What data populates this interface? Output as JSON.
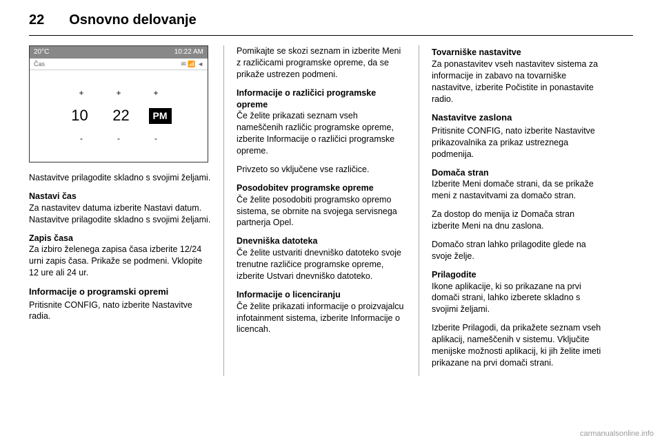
{
  "header": {
    "page": "22",
    "chapter": "Osnovno delovanje"
  },
  "screenshot": {
    "temp": "20°C",
    "time_small": "10:22 AM",
    "sub_left": "Čas",
    "sub_right": "✉ 📶 ◄",
    "plus": "+",
    "minus": "-",
    "hour": "10",
    "minute": "22",
    "pm": "PM"
  },
  "col1": {
    "p1": "Nastavitve prilagodite skladno s svojimi željami.",
    "h_nastavi": "Nastavi čas",
    "p2": "Za nastavitev datuma izberite Nastavi datum. Nastavitve prilagodite skladno s svojimi željami.",
    "h_zapis": "Zapis časa",
    "p3": "Za izbiro želenega zapisa časa izberite 12/24 urni zapis časa. Prikaže se podmeni. Vklopite 12 ure ali 24 ur.",
    "h_info": "Informacije o programski opremi",
    "p4": "Pritisnite CONFIG, nato izberite Nastavitve radia."
  },
  "col2": {
    "p1": "Pomikajte se skozi seznam in izberite Meni z različicami programske opreme, da se prikaže ustrezen podmeni.",
    "h_inf": "Informacije o različici programske opreme",
    "p2": "Če želite prikazati seznam vseh nameščenih različic programske opreme, izberite Informacije o različici programske opreme.",
    "p3": "Privzeto so vključene vse različice.",
    "h_pos": "Posodobitev programske opreme",
    "p4": "Če želite posodobiti programsko opremo sistema, se obrnite na svojega servisnega partnerja Opel.",
    "h_dnev": "Dnevniška datoteka",
    "p5": "Če želite ustvariti dnevniško datoteko svoje trenutne različice programske opreme, izberite Ustvari dnevniško datoteko.",
    "h_lic": "Informacije o licenciranju",
    "p6": "Če želite prikazati informacije o proizvajalcu infotainment sistema, izberite Informacije o licencah."
  },
  "col3": {
    "h_tov": "Tovarniške nastavitve",
    "p1": "Za ponastavitev vseh nastavitev sistema za informacije in zabavo na tovarniške nastavitve, izberite Počistite in ponastavite radio.",
    "h_nz": "Nastavitve zaslona",
    "p2": "Pritisnite CONFIG, nato izberite Nastavitve prikazovalnika za prikaz ustreznega podmenija.",
    "h_dom": "Domača stran",
    "p3": "Izberite Meni domače strani, da se prikaže meni z nastavitvami za domačo stran.",
    "p4": "Za dostop do menija iz Domača stran izberite Meni na dnu zaslona.",
    "p5": "Domačo stran lahko prilagodite glede na svoje želje.",
    "h_pri": "Prilagodite",
    "p6": "Ikone aplikacije, ki so prikazane na prvi domači strani, lahko izberete skladno s svojimi željami.",
    "p7": "Izberite Prilagodi, da prikažete seznam vseh aplikacij, nameščenih v sistemu. Vključite menijske možnosti aplikacij, ki jih želite imeti prikazane na prvi domači strani."
  },
  "footer": "carmanualsonline.info"
}
